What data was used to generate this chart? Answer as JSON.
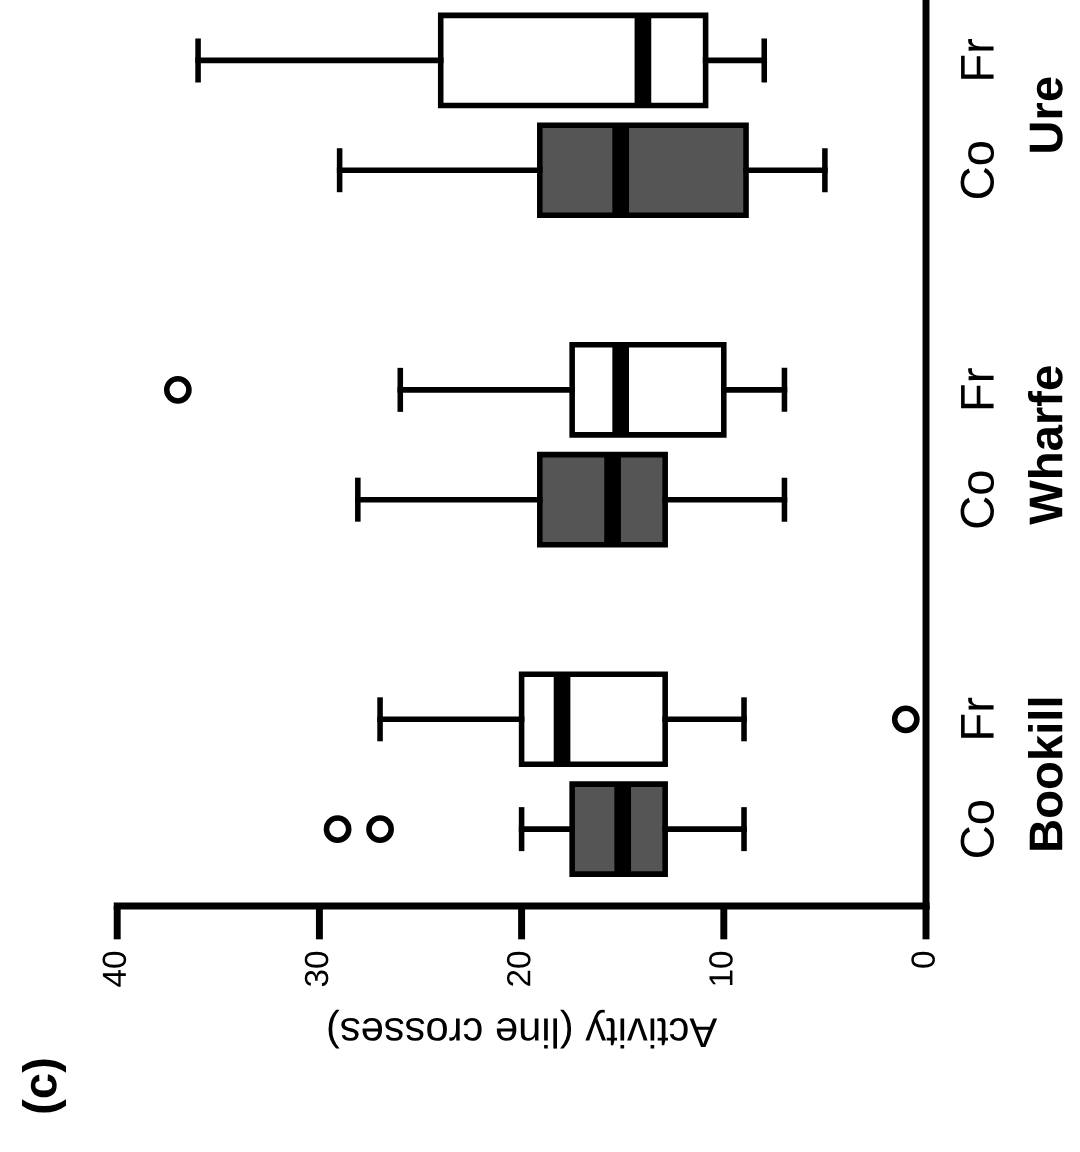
{
  "chart_data": {
    "type": "box",
    "orientation": "horizontal",
    "title": "(c)",
    "xlabel": "Activity (line crosses)",
    "categories": [
      "Fr",
      "Co",
      "Fr",
      "Co",
      "Fr",
      "Co"
    ],
    "annotations": [
      "Ure",
      "Wharfe",
      "Bookill"
    ],
    "colors": [
      "#ffffff",
      "#555555",
      "#ffffff",
      "#555555",
      "#ffffff",
      "#555555"
    ],
    "boxes": [
      {
        "low": 8.0,
        "q1": 10.9,
        "median": 14.0,
        "q3": 24.0,
        "high": 36.0
      },
      {
        "low": 5.0,
        "q1": 8.9,
        "median": 15.1,
        "q3": 19.1,
        "high": 29.0
      },
      {
        "low": 7.0,
        "q1": 10.0,
        "median": 15.1,
        "q3": 17.5,
        "high": 26.0,
        "outliers": [
          37.0
        ]
      },
      {
        "low": 7.0,
        "q1": 12.9,
        "median": 15.5,
        "q3": 19.1,
        "high": 28.1
      },
      {
        "low": 9.0,
        "q1": 12.9,
        "median": 18.0,
        "q3": 20.0,
        "high": 27.0,
        "outliers": [
          1.0
        ]
      },
      {
        "low": 9.0,
        "q1": 12.9,
        "median": 15.0,
        "q3": 17.5,
        "high": 20.0,
        "outliers": [
          29.1,
          27.0
        ]
      }
    ],
    "xlim": [
      40,
      0
    ],
    "xticks": [
      0,
      10,
      20,
      30,
      40
    ],
    "grid": false
  }
}
